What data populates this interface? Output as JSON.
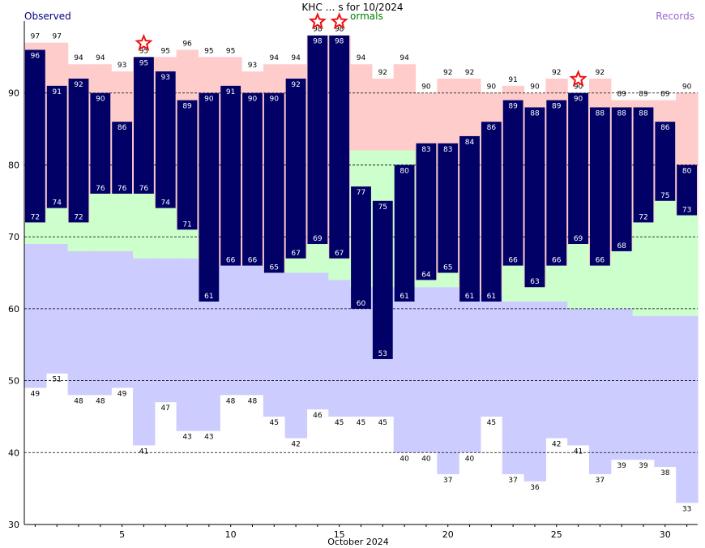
{
  "header": {
    "title": "KHC … s for 10/2024",
    "observed_label": "Observed",
    "normals_label": "ormals",
    "records_label": "Records"
  },
  "colors": {
    "observed": "#000066",
    "record_band": "#ffcccc",
    "normal_band": "#ccffcc",
    "lower_record_band": "#ccccff",
    "star": "#ee1111",
    "observed_legend": "#000080",
    "normals_legend": "#008000",
    "records_legend": "#9966cc"
  },
  "chart_data": {
    "type": "bar",
    "title": "KHC … s for 10/2024",
    "xlabel": "October 2024",
    "ylabel": "",
    "ylim": [
      30,
      100
    ],
    "yticks": [
      30,
      40,
      50,
      60,
      70,
      80,
      90
    ],
    "xticks": [
      5,
      10,
      15,
      20,
      25,
      30
    ],
    "grid": true,
    "days": [
      1,
      2,
      3,
      4,
      5,
      6,
      7,
      8,
      9,
      10,
      11,
      12,
      13,
      14,
      15,
      16,
      17,
      18,
      19,
      20,
      21,
      22,
      23,
      24,
      25,
      26,
      27,
      28,
      29,
      30,
      31
    ],
    "observed_high": [
      96,
      91,
      92,
      90,
      86,
      95,
      93,
      89,
      90,
      91,
      90,
      90,
      92,
      98,
      98,
      77,
      75,
      80,
      83,
      83,
      84,
      86,
      89,
      88,
      89,
      90,
      88,
      88,
      88,
      86,
      80
    ],
    "observed_low": [
      72,
      74,
      72,
      76,
      76,
      76,
      74,
      71,
      61,
      66,
      66,
      65,
      67,
      69,
      67,
      60,
      53,
      61,
      64,
      65,
      61,
      61,
      66,
      63,
      66,
      69,
      66,
      68,
      72,
      75,
      73
    ],
    "record_high": [
      97,
      97,
      94,
      94,
      93,
      95,
      95,
      96,
      95,
      95,
      93,
      94,
      94,
      98,
      98,
      94,
      92,
      94,
      90,
      92,
      92,
      90,
      91,
      90,
      92,
      90,
      92,
      89,
      89,
      89,
      90
    ],
    "record_low": [
      49,
      51,
      48,
      48,
      49,
      41,
      47,
      43,
      43,
      48,
      48,
      45,
      42,
      46,
      45,
      45,
      45,
      40,
      40,
      37,
      40,
      45,
      37,
      36,
      42,
      41,
      37,
      39,
      39,
      38,
      33
    ],
    "normal_high": [
      null,
      null,
      null,
      null,
      null,
      null,
      null,
      null,
      null,
      null,
      null,
      null,
      null,
      null,
      null,
      82,
      82,
      82,
      null,
      null,
      null,
      null,
      null,
      null,
      null,
      null,
      null,
      null,
      null,
      75,
      null
    ],
    "normal_low": [
      69,
      69,
      68,
      68,
      68,
      67,
      67,
      67,
      66,
      66,
      66,
      65,
      65,
      65,
      64,
      63,
      63,
      63,
      63,
      63,
      62,
      62,
      61,
      61,
      61,
      60,
      60,
      60,
      59,
      59,
      59
    ],
    "record_marks": [
      6,
      14,
      15,
      26
    ],
    "legend": [
      "Observed",
      "ormals",
      "Records"
    ]
  }
}
